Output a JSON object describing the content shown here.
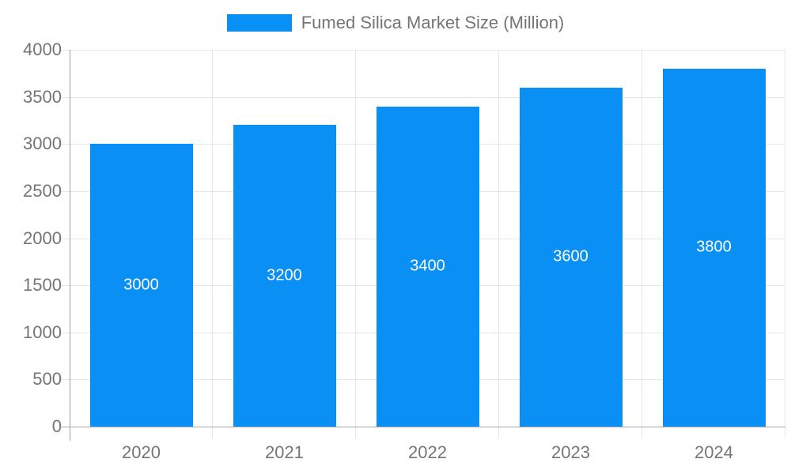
{
  "legend": {
    "label": "Fumed Silica Market Size (Million)"
  },
  "chart_data": {
    "type": "bar",
    "categories": [
      "2020",
      "2021",
      "2022",
      "2023",
      "2024"
    ],
    "values": [
      3000,
      3200,
      3400,
      3600,
      3800
    ],
    "bar_labels": [
      "3000",
      "3200",
      "3400",
      "3600",
      "3800"
    ],
    "title": "Fumed Silica Market Size (Million)",
    "xlabel": "",
    "ylabel": "",
    "ylim": [
      0,
      4000
    ],
    "yticks": [
      0,
      500,
      1000,
      1500,
      2000,
      2500,
      3000,
      3500,
      4000
    ],
    "grid": true,
    "legend_position": "top"
  },
  "colors": {
    "bar": "#0a90f5",
    "bar_label": "#ffffff",
    "grid": "#e6e6e6",
    "axis": "#9e9e9e",
    "text": "#757575",
    "background": "#ffffff"
  }
}
